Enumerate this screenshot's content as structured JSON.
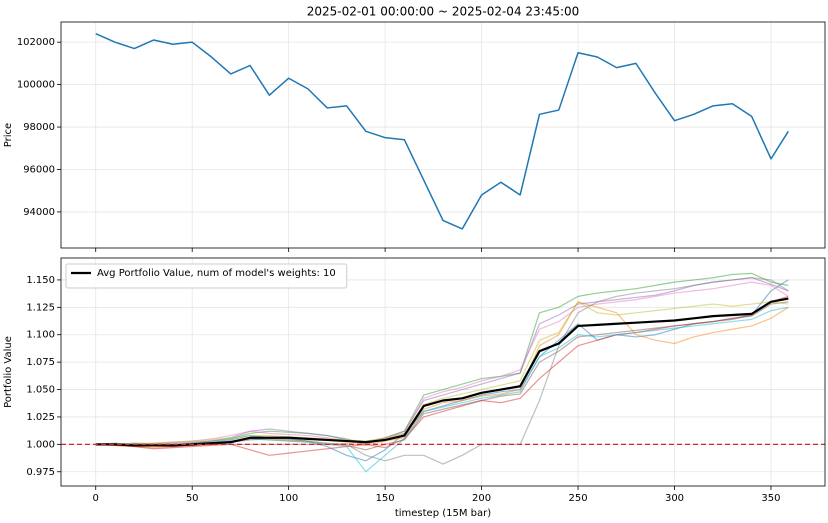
{
  "chart_data": [
    {
      "type": "line",
      "title": "2025-02-01 00:00:00 ~ 2025-02-04 23:45:00",
      "y_label": "Price",
      "grid": true,
      "x": [
        0,
        10,
        20,
        30,
        40,
        50,
        60,
        70,
        80,
        90,
        100,
        110,
        120,
        130,
        140,
        150,
        160,
        170,
        180,
        190,
        200,
        210,
        220,
        230,
        240,
        250,
        260,
        270,
        280,
        290,
        300,
        310,
        320,
        330,
        340,
        350,
        359
      ],
      "xlim": [
        -18,
        378
      ],
      "xticks": [
        0,
        50,
        100,
        150,
        200,
        250,
        300,
        350
      ],
      "ylim": [
        92300,
        102950
      ],
      "yticks": [
        94000,
        96000,
        98000,
        100000,
        102000
      ],
      "series": [
        {
          "color": "#1f77b4",
          "values": [
            102400,
            102000,
            101700,
            102100,
            101900,
            102000,
            101300,
            100500,
            100900,
            99500,
            100300,
            99800,
            98900,
            99000,
            97800,
            97500,
            97400,
            95500,
            93600,
            93200,
            94800,
            95400,
            94800,
            98600,
            98800,
            101500,
            101300,
            100800,
            101000,
            99600,
            98300,
            98600,
            99000,
            99100,
            98500,
            96500,
            97800
          ]
        }
      ]
    },
    {
      "type": "line",
      "x_label": "timestep (15M bar)",
      "y_label": "Portfolio Value",
      "grid": true,
      "legend": "upper left",
      "x": [
        0,
        10,
        20,
        30,
        40,
        50,
        60,
        70,
        80,
        90,
        100,
        110,
        120,
        130,
        140,
        150,
        160,
        170,
        180,
        190,
        200,
        210,
        220,
        230,
        240,
        250,
        260,
        270,
        280,
        290,
        300,
        310,
        320,
        330,
        340,
        350,
        359
      ],
      "xlim": [
        -18,
        378
      ],
      "xticks": [
        0,
        50,
        100,
        150,
        200,
        250,
        300,
        350
      ],
      "ylim": [
        0.962,
        1.17
      ],
      "yticks": [
        {
          "value": 0.975,
          "label": "0.975"
        },
        {
          "value": 1,
          "label": "1.000"
        },
        {
          "value": 1.025,
          "label": "1.025"
        },
        {
          "value": 1.05,
          "label": "1.050"
        },
        {
          "value": 1.075,
          "label": "1.075"
        },
        {
          "value": 1.1,
          "label": "1.100"
        },
        {
          "value": 1.125,
          "label": "1.125"
        },
        {
          "value": 1.15,
          "label": "1.150"
        }
      ],
      "hline": {
        "value": 1,
        "color": "#d62728"
      },
      "series": [
        {
          "color": "#1f77b4",
          "values": [
            1.0,
            1.0,
            1.001,
            1.0,
            0.999,
            1.001,
            1.002,
            1.004,
            1.008,
            1.006,
            1.005,
            1.003,
            0.998,
            0.99,
            0.985,
            0.995,
            1.01,
            1.03,
            1.035,
            1.04,
            1.045,
            1.048,
            1.05,
            1.08,
            1.095,
            1.11,
            1.095,
            1.1,
            1.098,
            1.1,
            1.105,
            1.11,
            1.112,
            1.115,
            1.118,
            1.14,
            1.15
          ]
        },
        {
          "color": "#ff7f0e",
          "values": [
            1.0,
            0.999,
            0.998,
            0.997,
            0.998,
            0.999,
            1.0,
            1.003,
            1.005,
            1.004,
            1.003,
            1.002,
            1.0,
            1.001,
            0.999,
            1.003,
            1.006,
            1.032,
            1.038,
            1.04,
            1.044,
            1.046,
            1.05,
            1.09,
            1.1,
            1.13,
            1.125,
            1.12,
            1.1,
            1.095,
            1.092,
            1.098,
            1.102,
            1.105,
            1.108,
            1.115,
            1.125
          ]
        },
        {
          "color": "#2ca02c",
          "values": [
            1.0,
            1.001,
            1.0,
            1.0,
            1.0,
            1.001,
            1.003,
            1.005,
            1.01,
            1.012,
            1.011,
            1.01,
            1.008,
            1.005,
            1.0,
            1.006,
            1.012,
            1.045,
            1.05,
            1.055,
            1.06,
            1.062,
            1.065,
            1.12,
            1.125,
            1.135,
            1.138,
            1.14,
            1.142,
            1.145,
            1.148,
            1.15,
            1.152,
            1.155,
            1.156,
            1.148,
            1.145
          ]
        },
        {
          "color": "#d62728",
          "values": [
            1.0,
            0.999,
            0.998,
            0.996,
            0.997,
            0.998,
            0.999,
            1.0,
            0.995,
            0.99,
            0.992,
            0.994,
            0.996,
            0.998,
            1.0,
            0.997,
            1.005,
            1.025,
            1.03,
            1.035,
            1.04,
            1.038,
            1.042,
            1.06,
            1.075,
            1.09,
            1.095,
            1.1,
            1.102,
            1.105,
            1.108,
            1.11,
            1.112,
            1.114,
            1.118,
            1.13,
            1.135
          ]
        },
        {
          "color": "#9467bd",
          "values": [
            1.0,
            1.0,
            1.0,
            1.0,
            1.001,
            1.002,
            1.003,
            1.006,
            1.012,
            1.014,
            1.012,
            1.01,
            1.008,
            1.004,
            1.002,
            1.006,
            1.012,
            1.04,
            1.045,
            1.05,
            1.055,
            1.06,
            1.065,
            1.11,
            1.118,
            1.128,
            1.13,
            1.132,
            1.134,
            1.136,
            1.14,
            1.145,
            1.148,
            1.15,
            1.152,
            1.146,
            1.14
          ]
        },
        {
          "color": "#8c564b",
          "values": [
            1.0,
            1.0,
            0.999,
            0.999,
            0.998,
            0.999,
            1.0,
            1.002,
            1.004,
            1.005,
            1.004,
            1.003,
            1.001,
            0.999,
            0.995,
            1.0,
            1.004,
            1.028,
            1.032,
            1.036,
            1.04,
            1.044,
            1.046,
            1.075,
            1.085,
            1.098,
            1.1,
            1.102,
            1.104,
            1.106,
            1.108,
            1.11,
            1.112,
            1.115,
            1.117,
            1.128,
            1.13
          ]
        },
        {
          "color": "#e377c2",
          "values": [
            1.0,
            1.0,
            1.0,
            1.001,
            1.002,
            1.003,
            1.005,
            1.008,
            1.012,
            1.01,
            1.009,
            1.008,
            1.006,
            1.003,
            1.0,
            1.005,
            1.01,
            1.042,
            1.048,
            1.052,
            1.058,
            1.062,
            1.068,
            1.105,
            1.112,
            1.125,
            1.128,
            1.13,
            1.132,
            1.135,
            1.138,
            1.14,
            1.142,
            1.145,
            1.148,
            1.145,
            1.135
          ]
        },
        {
          "color": "#7f7f7f",
          "values": [
            1.0,
            1.0,
            1.0,
            1.0,
            1.0,
            1.0,
            1.0,
            1.0,
            1.0,
            1.0,
            1.0,
            1.0,
            1.0,
            1.0,
            0.99,
            0.985,
            0.99,
            0.99,
            0.982,
            0.99,
            1.0,
            1.0,
            1.0,
            1.04,
            1.09,
            1.12,
            1.13,
            1.135,
            1.138,
            1.14,
            1.142,
            1.145,
            1.148,
            1.15,
            1.152,
            1.15,
            1.14
          ]
        },
        {
          "color": "#bcbd22",
          "values": [
            1.0,
            1.0,
            1.001,
            1.001,
            1.002,
            1.003,
            1.004,
            1.006,
            1.008,
            1.008,
            1.007,
            1.006,
            1.005,
            1.004,
            1.003,
            1.006,
            1.01,
            1.036,
            1.042,
            1.046,
            1.05,
            1.054,
            1.058,
            1.095,
            1.102,
            1.13,
            1.12,
            1.118,
            1.12,
            1.122,
            1.124,
            1.126,
            1.128,
            1.126,
            1.128,
            1.13,
            1.128
          ]
        },
        {
          "color": "#17becf",
          "values": [
            1.0,
            1.0,
            1.0,
            0.999,
            0.999,
            1.0,
            1.001,
            1.003,
            1.005,
            1.004,
            1.003,
            1.002,
            1.0,
            0.998,
            0.975,
            0.99,
            1.005,
            1.03,
            1.034,
            1.038,
            1.042,
            1.045,
            1.048,
            1.08,
            1.088,
            1.1,
            1.098,
            1.1,
            1.102,
            1.104,
            1.106,
            1.108,
            1.11,
            1.112,
            1.114,
            1.122,
            1.125
          ]
        },
        {
          "name": "Avg Portfolio Value, num of model's weights: 10",
          "color": "#000000",
          "values": [
            1.0,
            1.0,
            0.999,
            0.999,
            0.999,
            1.0,
            1.001,
            1.002,
            1.006,
            1.006,
            1.006,
            1.005,
            1.004,
            1.003,
            1.002,
            1.004,
            1.008,
            1.035,
            1.04,
            1.042,
            1.047,
            1.05,
            1.053,
            1.085,
            1.092,
            1.108,
            1.109,
            1.11,
            1.111,
            1.112,
            1.113,
            1.115,
            1.117,
            1.118,
            1.119,
            1.13,
            1.133
          ]
        }
      ]
    }
  ]
}
